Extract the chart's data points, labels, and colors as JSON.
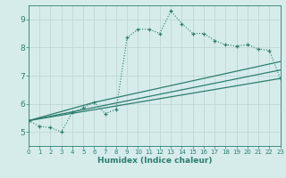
{
  "xlabel": "Humidex (Indice chaleur)",
  "background_color": "#d5ecea",
  "grid_color": "#c0d8d5",
  "line_color": "#2d7d6e",
  "xlim": [
    0,
    23
  ],
  "ylim": [
    4.5,
    9.5
  ],
  "xticks": [
    0,
    1,
    2,
    3,
    4,
    5,
    6,
    7,
    8,
    9,
    10,
    11,
    12,
    13,
    14,
    15,
    16,
    17,
    18,
    19,
    20,
    21,
    22,
    23
  ],
  "yticks": [
    5,
    6,
    7,
    8,
    9
  ],
  "line1_x": [
    0,
    1,
    2,
    3,
    4,
    5,
    6,
    7,
    8,
    9,
    10,
    11,
    12,
    13,
    14,
    15,
    16,
    17,
    18,
    19,
    20,
    21,
    22,
    23
  ],
  "line1_y": [
    5.4,
    5.2,
    5.15,
    5.0,
    5.7,
    5.85,
    6.05,
    5.65,
    5.8,
    8.35,
    8.65,
    8.65,
    8.5,
    9.3,
    8.85,
    8.5,
    8.5,
    8.25,
    8.1,
    8.05,
    8.1,
    7.95,
    7.9,
    6.9
  ],
  "line2_x": [
    0,
    23
  ],
  "line2_y": [
    5.4,
    6.9
  ],
  "line3_x": [
    0,
    6,
    23
  ],
  "line3_y": [
    5.4,
    6.05,
    7.5
  ],
  "line4_x": [
    0,
    23
  ],
  "line4_y": [
    5.4,
    7.2
  ]
}
